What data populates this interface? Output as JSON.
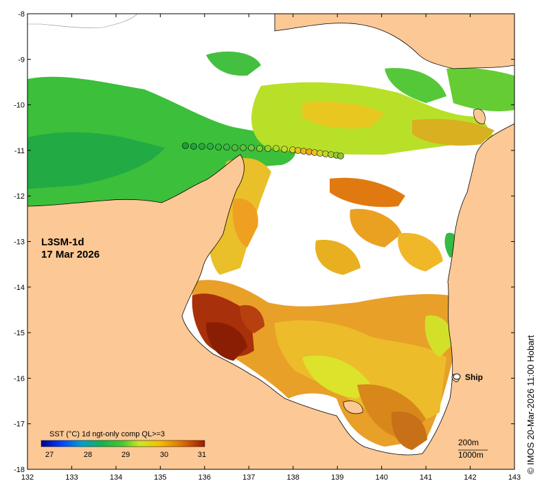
{
  "map": {
    "product": "L3SM-1d",
    "date": "17 Mar 2026",
    "lon_ticks": [
      "132",
      "133",
      "134",
      "135",
      "136",
      "137",
      "138",
      "139",
      "140",
      "141",
      "142",
      "143"
    ],
    "lat_ticks": [
      "-8",
      "-9",
      "-10",
      "-11",
      "-12",
      "-13",
      "-14",
      "-15",
      "-16",
      "-17",
      "-18"
    ],
    "legend": {
      "title": "SST (°C) 1d ngt-only comp QL>=3",
      "ticks": [
        "27",
        "28",
        "29",
        "30",
        "31"
      ]
    },
    "ship_label": "Ship",
    "isobaths": [
      "200m",
      "1000m"
    ],
    "credit": "© IMOS 20-Mar-2026 11:00 Hobart",
    "colors": {
      "land": "#fcc895",
      "ocean_no_data": "#ffffff",
      "sst_scale": [
        "#00008c",
        "#0040ff",
        "#00c8c8",
        "#2aa52a",
        "#7cd13a",
        "#e8f020",
        "#f5b400",
        "#e07a00",
        "#a01e00"
      ]
    }
  }
}
